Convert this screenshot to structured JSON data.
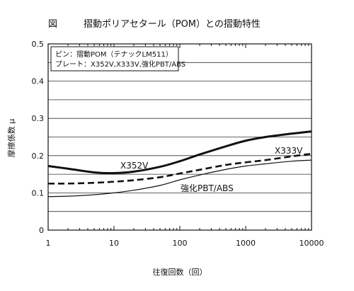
{
  "chart_data": {
    "type": "line",
    "title_prefix": "図",
    "title": "摺動ポリアセタール（POM）との摺動特性",
    "xlabel": "往復回数（回）",
    "ylabel": "摩擦係数 μ",
    "x_scale": "log",
    "xlim": [
      1,
      10000
    ],
    "ylim": [
      0,
      0.5
    ],
    "x_ticks": [
      1,
      10,
      100,
      1000,
      10000
    ],
    "x_tick_labels": [
      "1",
      "10",
      "100",
      "1000",
      "10000"
    ],
    "y_ticks": [
      0,
      0.1,
      0.2,
      0.3,
      0.4,
      0.5
    ],
    "y_tick_labels": [
      "0",
      "0.1",
      "0.2",
      "0.3",
      "0.4",
      "0.5"
    ],
    "grid": "horizontal",
    "legend_box": {
      "line1": "ピン：摺動POM（テナックLM511）",
      "line2": "プレート：X352V,X333V,強化PBT/ABS"
    },
    "series": [
      {
        "name": "X352V",
        "style": "thick-solid",
        "x": [
          1,
          2,
          5,
          10,
          20,
          50,
          100,
          200,
          500,
          1000,
          2000,
          5000,
          10000
        ],
        "y": [
          0.172,
          0.165,
          0.155,
          0.153,
          0.157,
          0.17,
          0.185,
          0.203,
          0.225,
          0.24,
          0.25,
          0.259,
          0.265
        ]
      },
      {
        "name": "X333V",
        "style": "thick-dashed",
        "x": [
          1,
          2,
          5,
          10,
          20,
          50,
          100,
          200,
          500,
          1000,
          2000,
          5000,
          10000
        ],
        "y": [
          0.125,
          0.125,
          0.127,
          0.13,
          0.134,
          0.142,
          0.152,
          0.162,
          0.175,
          0.182,
          0.188,
          0.198,
          0.205
        ]
      },
      {
        "name": "強化PBT/ABS",
        "style": "thin-solid",
        "x": [
          1,
          2,
          5,
          10,
          20,
          50,
          100,
          200,
          500,
          1000,
          2000,
          5000,
          10000
        ],
        "y": [
          0.09,
          0.091,
          0.095,
          0.1,
          0.107,
          0.12,
          0.135,
          0.148,
          0.163,
          0.172,
          0.178,
          0.185,
          0.188
        ]
      }
    ]
  }
}
